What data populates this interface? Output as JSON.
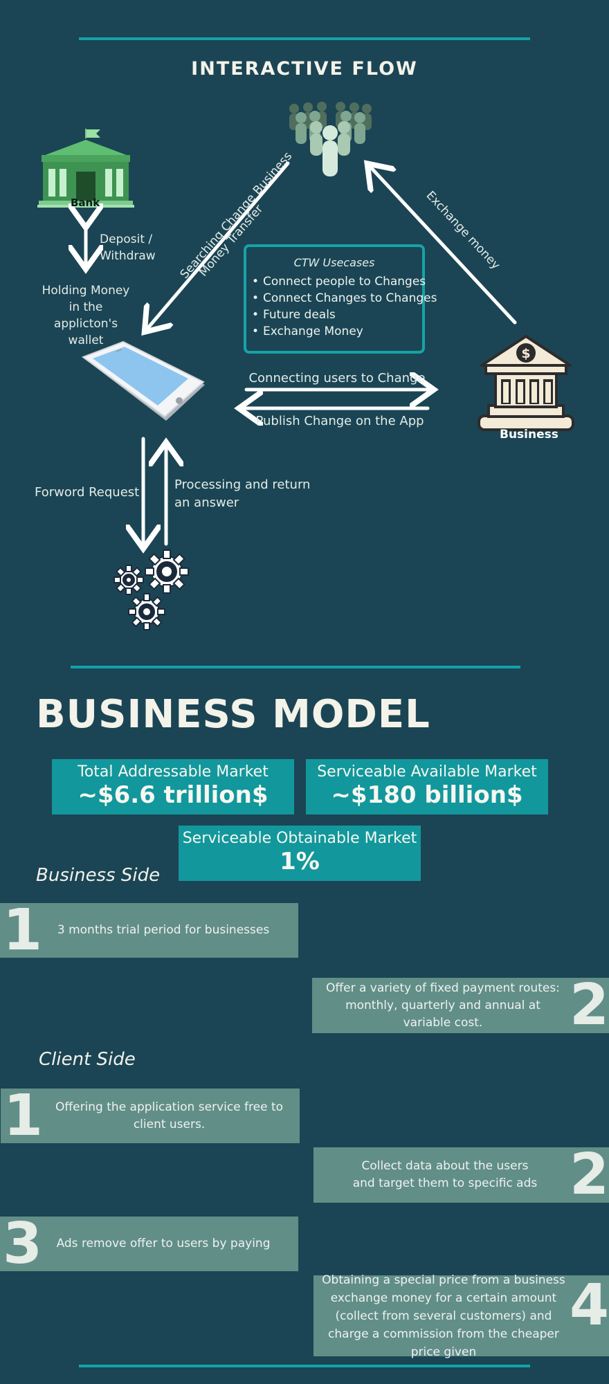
{
  "flow": {
    "title": "INTERACTIVE FLOW",
    "bank_label": "Bank",
    "deposit_label": "Deposit /\nWithdraw",
    "holding_label": "Holding Money\nin the\napplicton's\nwallet",
    "search_label_1": "Searching Change Business",
    "search_label_2": "Money Transfer",
    "exchange_label": "Exchange money",
    "usecases": {
      "title": "CTW Usecases",
      "items": [
        "Connect people to Changes",
        "Connect Changes to Changes",
        "Future deals",
        "Exchange Money"
      ]
    },
    "connecting_label": "Connecting users to Change",
    "publish_label": "Publish Change on the App",
    "business_label": "Business",
    "forward_label": "Forword Request",
    "processing_label": "Processing and return\nan answer"
  },
  "business_model": {
    "title": "BUSINESS MODEL",
    "markets": [
      {
        "label": "Total Addressable Market",
        "value": "~$6.6 trillion$"
      },
      {
        "label": "Serviceable Available Market",
        "value": "~$180 billion$"
      },
      {
        "label": "Serviceable Obtainable Market",
        "value": "1%"
      }
    ],
    "business_side": {
      "heading": "Business Side",
      "items": [
        {
          "num": "1",
          "text": "3 months trial period for businesses"
        },
        {
          "num": "2",
          "text": "Offer a variety of fixed payment routes: monthly, quarterly and annual at variable cost."
        }
      ]
    },
    "client_side": {
      "heading": "Client Side",
      "items": [
        {
          "num": "1",
          "text": "Offering the application service free to client users."
        },
        {
          "num": "2",
          "text": "Collect data about the users\nand target them to specific ads"
        },
        {
          "num": "3",
          "text": "Ads remove offer to users by paying"
        },
        {
          "num": "4",
          "text": "Obtaining a special price from a business exchange money for a certain amount (collect from several customers) and charge a commission from the cheaper price given"
        }
      ]
    }
  },
  "colors": {
    "background": "#1b4554",
    "accent": "#11a3a8",
    "market_box": "#12979c",
    "card": "#628e88"
  }
}
